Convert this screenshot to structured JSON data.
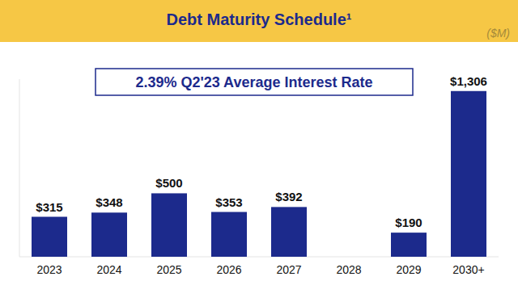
{
  "chart_data": {
    "type": "bar",
    "title": "Debt Maturity Schedule¹",
    "subtitle": "($M)",
    "annotations": [
      "2.39% Q2'23 Average Interest Rate"
    ],
    "categories": [
      "2023",
      "2024",
      "2025",
      "2026",
      "2027",
      "2028",
      "2029",
      "2030+"
    ],
    "values": [
      315,
      348,
      500,
      353,
      392,
      null,
      190,
      1306
    ],
    "value_labels": [
      "$315",
      "$348",
      "$500",
      "$353",
      "$392",
      null,
      "$190",
      "$1,306"
    ],
    "color": "#1c2a8c",
    "ylim": [
      0,
      1400
    ],
    "yticks": [
      0
    ],
    "grid": false,
    "data_labels": true,
    "tick_labels": "x"
  }
}
